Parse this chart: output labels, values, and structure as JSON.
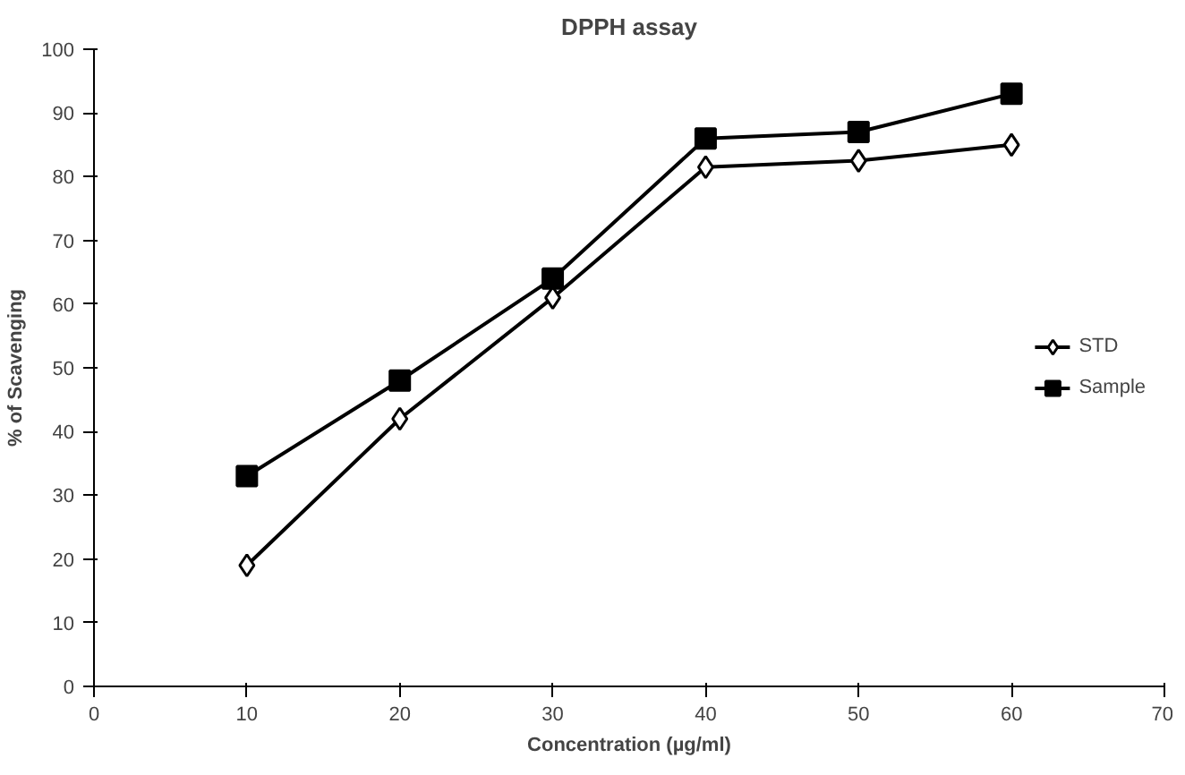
{
  "chart_data": {
    "type": "line",
    "title": "DPPH assay",
    "xlabel": "Concentration (µg/ml)",
    "ylabel": "% of Scavenging",
    "x": [
      10,
      20,
      30,
      40,
      50,
      60
    ],
    "series": [
      {
        "name": "STD",
        "color": "#000000",
        "marker": "diamond",
        "values": [
          19,
          42,
          61,
          81.5,
          82.5,
          85
        ]
      },
      {
        "name": "Sample",
        "color": "#000000",
        "marker": "square",
        "values": [
          33,
          48,
          64,
          86,
          87,
          93
        ]
      }
    ],
    "xlim": [
      0,
      70
    ],
    "xticks": [
      0,
      10,
      20,
      30,
      40,
      50,
      60,
      70
    ],
    "ylim": [
      0,
      100
    ],
    "yticks": [
      0,
      10,
      20,
      30,
      40,
      50,
      60,
      70,
      80,
      90,
      100
    ],
    "grid": false,
    "legend": "right",
    "line_style": "solid"
  }
}
